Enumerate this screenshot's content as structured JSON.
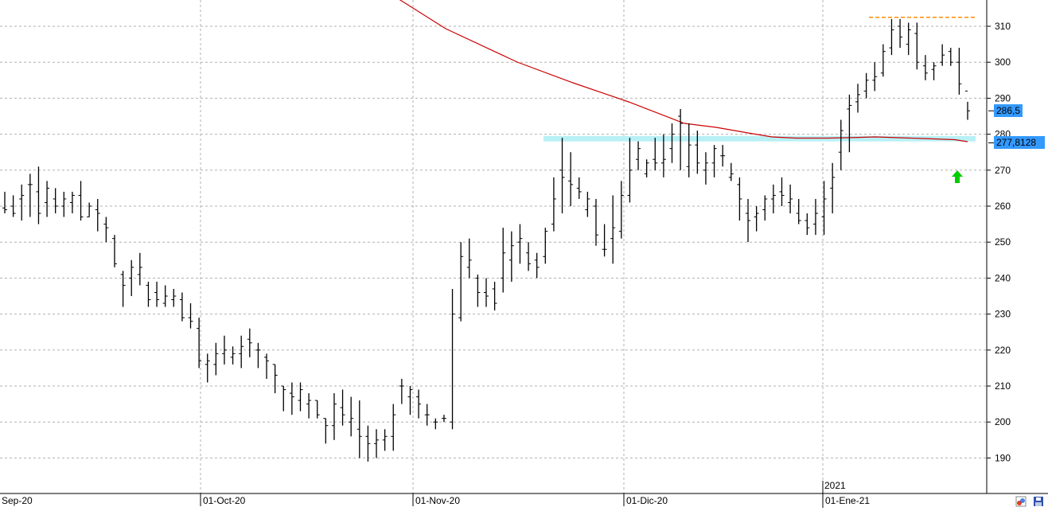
{
  "chart_data": {
    "type": "ohlc",
    "y_axis": {
      "ticks": [
        190,
        200,
        210,
        220,
        230,
        240,
        250,
        260,
        270,
        280,
        290,
        300,
        310
      ],
      "ylim": [
        181,
        317
      ],
      "position": "right",
      "grid": "dashed"
    },
    "x_axis": {
      "date_labels": [
        "Sep-20",
        "01-Oct-20",
        "01-Nov-20",
        "01-Dic-20",
        "01-Ene-21"
      ],
      "year_marker": "2021"
    },
    "last_price_label": "286,5",
    "last_price_value": 286.5,
    "moving_average_label": "277,8128",
    "moving_average_value": 277.8128,
    "moving_average_color": "#cc0000",
    "resistance_level": 312.5,
    "resistance_color": "#ff8c00",
    "support_band": [
      278,
      279.5
    ],
    "support_band_color": "#b8f0f6",
    "signal_arrow": "up-arrow",
    "signal_arrow_color": "#00cc00",
    "ohlc_color": "#000000",
    "bars": [
      [
        259.5,
        264,
        258,
        259
      ],
      [
        260,
        263,
        257,
        258
      ],
      [
        262,
        266,
        256,
        263
      ],
      [
        266,
        269,
        257,
        266
      ],
      [
        264,
        271,
        255,
        258
      ],
      [
        261,
        267,
        257,
        265
      ],
      [
        262,
        265,
        258,
        260
      ],
      [
        260,
        264,
        257,
        262
      ],
      [
        261,
        264,
        258,
        263
      ],
      [
        263,
        267,
        256,
        257
      ],
      [
        257,
        261,
        257,
        260
      ],
      [
        259,
        262,
        253,
        258
      ],
      [
        255,
        257,
        250,
        254
      ],
      [
        251,
        252,
        243,
        244
      ],
      [
        241,
        242,
        232,
        238
      ],
      [
        240,
        245,
        235,
        243
      ],
      [
        241,
        247,
        238,
        243
      ],
      [
        238,
        239,
        232,
        234
      ],
      [
        236,
        239,
        232,
        234
      ],
      [
        233,
        238,
        232,
        235
      ],
      [
        234,
        237,
        232,
        235
      ],
      [
        234,
        236,
        228,
        229
      ],
      [
        229,
        233,
        226,
        228
      ],
      [
        226,
        229,
        215,
        217
      ],
      [
        216,
        219,
        211,
        217
      ],
      [
        216,
        222,
        213,
        219
      ],
      [
        219,
        224,
        216,
        220
      ],
      [
        218,
        221,
        216,
        219
      ],
      [
        219,
        224,
        215,
        221
      ],
      [
        223,
        226,
        218,
        222
      ],
      [
        220,
        222,
        215,
        220
      ],
      [
        218,
        219,
        212,
        217
      ],
      [
        216,
        216,
        208,
        213
      ],
      [
        210,
        210,
        203,
        209
      ],
      [
        208,
        211,
        202,
        207
      ],
      [
        206,
        211,
        203,
        209
      ],
      [
        205,
        208,
        201,
        206
      ],
      [
        206,
        206,
        201,
        202
      ],
      [
        201,
        201,
        194,
        199
      ],
      [
        199,
        208,
        195,
        205
      ],
      [
        204,
        209,
        199,
        202
      ],
      [
        200,
        207,
        196,
        201
      ],
      [
        198,
        206,
        190,
        196
      ],
      [
        196,
        199,
        189,
        194
      ],
      [
        194,
        198,
        190,
        195
      ],
      [
        195,
        198,
        192,
        196
      ],
      [
        196,
        205,
        192,
        202
      ],
      [
        210,
        212,
        205,
        210
      ],
      [
        207,
        210,
        202,
        209
      ],
      [
        207,
        209,
        201,
        205
      ],
      [
        202,
        205,
        199,
        202
      ],
      [
        200,
        201,
        198,
        200
      ],
      [
        201,
        202,
        200,
        201
      ],
      [
        200,
        237,
        198,
        230
      ],
      [
        229,
        250,
        228,
        246
      ],
      [
        243,
        251,
        240,
        245
      ],
      [
        240,
        241,
        232,
        236
      ],
      [
        236,
        240,
        232,
        235
      ],
      [
        237,
        239,
        231,
        233
      ],
      [
        240,
        254,
        236,
        247
      ],
      [
        245,
        253,
        239,
        249
      ],
      [
        250,
        255,
        244,
        251
      ],
      [
        247,
        250,
        242,
        244
      ],
      [
        245,
        247,
        240,
        243
      ],
      [
        246,
        254,
        244,
        253
      ],
      [
        255,
        268,
        253,
        262
      ],
      [
        270,
        279,
        258,
        268
      ],
      [
        267,
        275,
        260,
        266
      ],
      [
        265,
        268,
        262,
        264
      ],
      [
        259,
        264,
        257,
        262
      ],
      [
        260,
        262,
        249,
        252
      ],
      [
        248,
        255,
        246,
        248
      ],
      [
        251,
        263,
        244,
        254
      ],
      [
        253,
        267,
        251,
        263
      ],
      [
        263,
        279,
        261,
        270
      ],
      [
        273,
        278,
        270,
        276
      ],
      [
        269,
        273,
        268,
        272
      ],
      [
        273,
        279,
        270,
        272
      ],
      [
        272,
        280,
        268,
        273
      ],
      [
        276,
        283,
        272,
        280
      ],
      [
        285,
        287,
        270,
        283
      ],
      [
        271,
        283,
        268,
        277
      ],
      [
        277,
        281,
        269,
        272
      ],
      [
        270,
        275,
        266,
        272
      ],
      [
        272,
        277,
        268,
        276
      ],
      [
        274,
        277,
        271,
        274
      ],
      [
        268,
        272,
        267,
        269
      ],
      [
        266,
        268,
        256,
        262
      ],
      [
        258,
        262,
        250,
        256
      ],
      [
        257,
        260,
        253,
        258
      ],
      [
        259,
        263,
        256,
        262
      ],
      [
        262,
        266,
        258,
        263
      ],
      [
        264,
        268,
        260,
        263
      ],
      [
        261,
        266,
        258,
        262
      ],
      [
        258,
        262,
        255,
        256
      ],
      [
        256,
        258,
        252,
        254
      ],
      [
        255,
        262,
        252,
        258
      ],
      [
        257,
        267,
        252,
        262
      ],
      [
        265,
        272,
        258,
        268
      ],
      [
        275,
        284,
        270,
        281
      ],
      [
        287,
        291,
        275,
        288
      ],
      [
        289,
        294,
        286,
        291
      ],
      [
        292,
        297,
        290,
        295
      ],
      [
        295,
        300,
        292,
        296
      ],
      [
        297,
        305,
        296,
        303
      ],
      [
        304,
        312,
        302,
        309
      ],
      [
        310,
        312,
        304,
        307
      ],
      [
        305,
        311,
        302,
        309
      ],
      [
        308,
        311,
        298,
        300
      ],
      [
        299,
        302,
        295,
        297
      ],
      [
        298,
        300,
        295,
        299
      ],
      [
        300,
        305,
        299,
        302
      ],
      [
        303,
        304,
        299,
        300
      ],
      [
        300,
        304,
        291,
        294
      ],
      [
        292,
        289,
        284,
        286.5
      ]
    ],
    "ma_points": [
      [
        495,
        -5
      ],
      [
        560,
        36
      ],
      [
        650,
        78
      ],
      [
        720,
        104
      ],
      [
        790,
        128
      ],
      [
        860,
        155
      ],
      [
        900,
        160
      ],
      [
        940,
        167
      ],
      [
        970,
        172
      ],
      [
        1000,
        173.5
      ],
      [
        1040,
        173.5
      ],
      [
        1065,
        173
      ],
      [
        1100,
        172
      ],
      [
        1130,
        173
      ],
      [
        1160,
        174
      ],
      [
        1200,
        175.5
      ],
      [
        1216,
        178
      ]
    ]
  },
  "icons": {
    "left": "chart-style-icon",
    "right": "save-icon"
  }
}
